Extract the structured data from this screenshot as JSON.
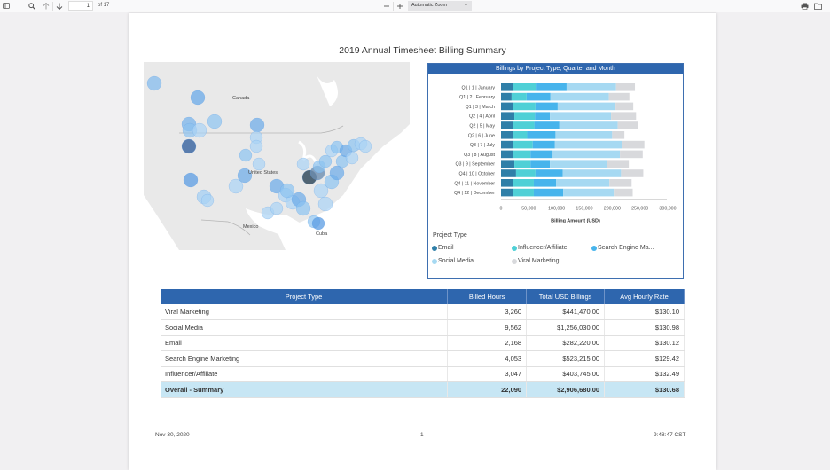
{
  "viewer": {
    "page_current": "1",
    "page_total_label": "of 17",
    "zoom_label": "Automatic Zoom",
    "icons": [
      "sidebar-toggle-icon",
      "search-icon",
      "arrow-up-icon",
      "arrow-down-icon",
      "zoom-out-icon",
      "zoom-in-icon",
      "print-icon",
      "open-file-icon"
    ]
  },
  "report": {
    "title": "2019 Annual Timesheet Billing Summary",
    "map": {
      "labels": {
        "canada": "Canada",
        "us": "United States",
        "mexico": "Mexico",
        "cuba": "Cuba"
      }
    },
    "footer": {
      "date": "Nov 30, 2020",
      "page": "1",
      "time": "9:48:47 CST"
    },
    "table": {
      "headers": [
        "Project Type",
        "Billed Hours",
        "Total USD Billings",
        "Avg Hourly Rate"
      ],
      "rows": [
        [
          "Viral Marketing",
          "3,260",
          "$441,470.00",
          "$130.10"
        ],
        [
          "Social Media",
          "9,562",
          "$1,256,030.00",
          "$130.98"
        ],
        [
          "Email",
          "2,168",
          "$282,220.00",
          "$130.12"
        ],
        [
          "Search Engine Marketing",
          "4,053",
          "$523,215.00",
          "$129.42"
        ],
        [
          "Influencer/Affiliate",
          "3,047",
          "$403,745.00",
          "$132.49"
        ]
      ],
      "total": [
        "Overall - Summary",
        "22,090",
        "$2,906,680.00",
        "$130.68"
      ]
    }
  },
  "chart_data": {
    "type": "bar",
    "orientation": "horizontal",
    "stacked": true,
    "title": "Billings by Project Type, Quarter and Month",
    "xlabel": "Billing Amount (USD)",
    "ylabel": "",
    "xlim": [
      0,
      300000
    ],
    "xticks": [
      "0",
      "50,000",
      "100,000",
      "150,000",
      "200,000",
      "250,000",
      "300,000"
    ],
    "xtick_values": [
      0,
      50000,
      100000,
      150000,
      200000,
      250000,
      300000
    ],
    "categories": [
      "Q1 | 1 | January",
      "Q1 | 2 | February",
      "Q1 | 3 | March",
      "Q2 | 4 | April",
      "Q2 | 5 | May",
      "Q2 | 6 | June",
      "Q3 | 7 | July",
      "Q3 | 8 | August",
      "Q3 | 9 | September",
      "Q4 | 10 | October",
      "Q4 | 11 | November",
      "Q4 | 12 | December"
    ],
    "legend_title": "Project Type",
    "legend_position": "bottom",
    "series": [
      {
        "name": "Email",
        "color": "#2f7fa8",
        "values": [
          21000,
          19000,
          22000,
          24000,
          22000,
          21000,
          22000,
          21000,
          24000,
          27000,
          22000,
          21000
        ]
      },
      {
        "name": "Influencer/Affiliate",
        "color": "#4fd0d6",
        "values": [
          43000,
          27000,
          40000,
          37000,
          38000,
          26000,
          35000,
          32000,
          29000,
          35000,
          37000,
          38000
        ]
      },
      {
        "name": "Search Engine Marketing",
        "color": "#47b4ec",
        "values": [
          54000,
          43000,
          40000,
          27000,
          45000,
          51000,
          40000,
          40000,
          35000,
          49000,
          40000,
          53000
        ]
      },
      {
        "name": "Social Media",
        "color": "#a6d9f2",
        "values": [
          89000,
          105000,
          104000,
          110000,
          105000,
          102000,
          121000,
          121000,
          102000,
          105000,
          96000,
          91000
        ]
      },
      {
        "name": "Viral Marketing",
        "color": "#d8d9dc",
        "values": [
          34000,
          37000,
          32000,
          45000,
          37000,
          22000,
          40000,
          41000,
          40000,
          40000,
          40000,
          34000
        ]
      }
    ]
  }
}
